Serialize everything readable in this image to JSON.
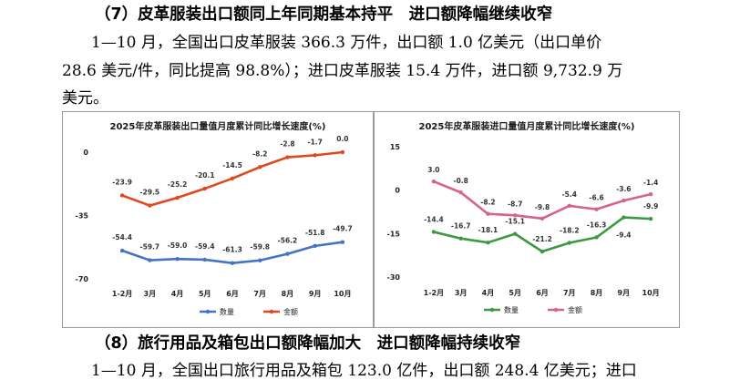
{
  "section7": {
    "heading": "（7）皮革服装出口额同上年同期基本持平　进口额降幅继续收窄",
    "para": [
      "1—10 月，全国出口皮革服装 366.3 万件，出口额 1.0 亿美元（出口单价",
      "28.6 美元/件，同比提高 98.8%）；进口皮革服装 15.4 万件，进口额 9,732.9 万",
      "美元。"
    ]
  },
  "section8": {
    "heading": "（8）旅行用品及箱包出口额降幅加大　进口额降幅持续收窄",
    "para": "1—10 月，全国出口旅行用品及箱包 123.0 亿件，出口额 248.4 亿美元；进口"
  },
  "chart_data": [
    {
      "type": "line",
      "title": "2025年皮革服装出口量值月度累计同比增长速度(%)",
      "categories": [
        "1-2月",
        "3月",
        "4月",
        "5月",
        "6月",
        "7月",
        "8月",
        "9月",
        "10月"
      ],
      "ylim": [
        -70,
        0
      ],
      "yticks": [
        "0",
        "-35",
        "-70"
      ],
      "series": [
        {
          "name": "数量",
          "color": "#4472c4",
          "values": [
            -54.4,
            -59.7,
            -59.0,
            -59.4,
            -61.3,
            -59.8,
            -56.2,
            -51.8,
            -49.7
          ],
          "labels": [
            "-54.4",
            "-59.7",
            "-59.0",
            "-59.4",
            "-61.3",
            "-59.8",
            "-56.2",
            "-51.8",
            "-49.7"
          ]
        },
        {
          "name": "金额",
          "color": "#e0471e",
          "values": [
            -23.9,
            -29.5,
            -25.2,
            -20.1,
            -14.5,
            -8.2,
            -2.8,
            -1.7,
            0.0
          ],
          "labels": [
            "-23.9",
            "-29.5",
            "-25.2",
            "-20.1",
            "-14.5",
            "-8.2",
            "-2.8",
            "-1.7",
            "0.0"
          ]
        }
      ]
    },
    {
      "type": "line",
      "title": "2025年皮革服装进口量值月度累计同比增长速度(%)",
      "categories": [
        "1-2月",
        "3月",
        "4月",
        "5月",
        "6月",
        "7月",
        "8月",
        "9月",
        "10月"
      ],
      "ylim": [
        -30,
        15
      ],
      "yticks": [
        "15",
        "0",
        "-15",
        "-30"
      ],
      "series": [
        {
          "name": "数量",
          "color": "#3a9a40",
          "values": [
            -14.4,
            -16.7,
            -18.1,
            -15.1,
            -21.2,
            -18.2,
            -16.3,
            -9.4,
            -9.9
          ],
          "labels": [
            "-14.4",
            "-16.7",
            "-18.1",
            "-15.1",
            "-21.2",
            "-18.2",
            "-16.3",
            "-9.4",
            "-9.9"
          ]
        },
        {
          "name": "金额",
          "color": "#d6628f",
          "values": [
            3.0,
            -0.8,
            -8.2,
            -8.7,
            -9.8,
            -5.4,
            -6.6,
            -3.6,
            -1.4
          ],
          "labels": [
            "3.0",
            "-0.8",
            "-8.2",
            "-8.7",
            "-9.8",
            "-5.4",
            "-6.6",
            "-3.6",
            "-1.4"
          ]
        }
      ]
    }
  ]
}
